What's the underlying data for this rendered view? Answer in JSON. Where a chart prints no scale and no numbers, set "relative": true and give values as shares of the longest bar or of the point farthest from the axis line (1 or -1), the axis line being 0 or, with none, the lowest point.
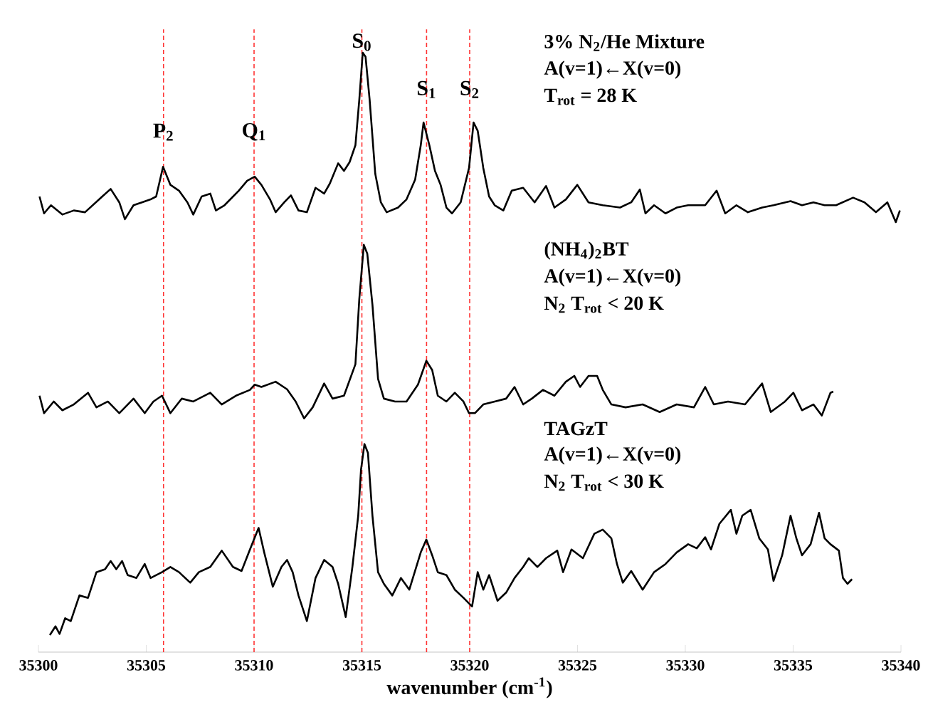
{
  "chart_data": {
    "type": "line",
    "relative": true,
    "xlabel": "wavenumber (cm$^{-1}$)",
    "xlim": [
      35300,
      35340
    ],
    "xticks": [
      35300,
      35305,
      35310,
      35315,
      35320,
      35325,
      35330,
      35335,
      35340
    ],
    "series": [
      {
        "color": "#000000",
        "x": [
          35300.05,
          35300.26,
          35300.58,
          35301.11,
          35301.64,
          35302.16,
          35302.96,
          35303.35,
          35303.75,
          35304.01,
          35304.41,
          35304.8,
          35305.2,
          35305.46,
          35305.78,
          35306.12,
          35306.52,
          35306.91,
          35307.18,
          35307.57,
          35307.97,
          35308.23,
          35308.63,
          35309.29,
          35309.68,
          35310.03,
          35310.34,
          35310.74,
          35311.0,
          35311.4,
          35311.71,
          35312.06,
          35312.45,
          35312.85,
          35313.25,
          35313.51,
          35313.9,
          35314.17,
          35314.43,
          35314.7,
          35314.88,
          35315.04,
          35315.17,
          35315.36,
          35315.62,
          35315.88,
          35316.15,
          35316.68,
          35317.07,
          35317.47,
          35317.73,
          35317.86,
          35318.13,
          35318.39,
          35318.65,
          35318.92,
          35319.18,
          35319.58,
          35319.97,
          35320.18,
          35320.37,
          35320.63,
          35320.9,
          35321.16,
          35321.56,
          35321.95,
          35322.48,
          35323.01,
          35323.54,
          35323.93,
          35324.46,
          35324.99,
          35325.51,
          35326.17,
          35326.97,
          35327.49,
          35327.89,
          35328.15,
          35328.55,
          35329.08,
          35329.6,
          35330.13,
          35330.92,
          35331.45,
          35331.85,
          35332.37,
          35332.9,
          35333.56,
          35334.09,
          35334.88,
          35335.41,
          35335.94,
          35336.46,
          35336.99,
          35337.78,
          35338.31,
          35338.84,
          35339.37,
          35339.76,
          35339.95
        ],
        "values": [
          0.753,
          0.724,
          0.738,
          0.722,
          0.729,
          0.726,
          0.753,
          0.766,
          0.743,
          0.714,
          0.738,
          0.743,
          0.748,
          0.753,
          0.804,
          0.773,
          0.763,
          0.743,
          0.722,
          0.753,
          0.758,
          0.729,
          0.738,
          0.763,
          0.78,
          0.787,
          0.773,
          0.748,
          0.726,
          0.743,
          0.755,
          0.729,
          0.726,
          0.768,
          0.758,
          0.775,
          0.81,
          0.797,
          0.812,
          0.841,
          0.919,
          1.0,
          0.993,
          0.919,
          0.792,
          0.743,
          0.726,
          0.734,
          0.748,
          0.782,
          0.841,
          0.88,
          0.841,
          0.797,
          0.773,
          0.734,
          0.724,
          0.743,
          0.802,
          0.88,
          0.866,
          0.802,
          0.753,
          0.738,
          0.729,
          0.763,
          0.768,
          0.743,
          0.771,
          0.734,
          0.748,
          0.773,
          0.743,
          0.738,
          0.734,
          0.743,
          0.765,
          0.724,
          0.738,
          0.724,
          0.734,
          0.738,
          0.738,
          0.763,
          0.724,
          0.738,
          0.726,
          0.734,
          0.738,
          0.745,
          0.738,
          0.743,
          0.738,
          0.738,
          0.751,
          0.743,
          0.726,
          0.743,
          0.709,
          0.729
        ]
      },
      {
        "color": "#000000",
        "x": [
          35300.05,
          35300.26,
          35300.71,
          35301.11,
          35301.64,
          35302.3,
          35302.69,
          35303.22,
          35303.75,
          35304.41,
          35304.93,
          35305.33,
          35305.73,
          35306.12,
          35306.65,
          35307.18,
          35307.97,
          35308.5,
          35309.16,
          35309.81,
          35310.03,
          35310.34,
          35311.0,
          35311.53,
          35311.93,
          35312.32,
          35312.72,
          35313.25,
          35313.64,
          35314.17,
          35314.7,
          35314.88,
          35315.09,
          35315.25,
          35315.49,
          35315.75,
          35316.02,
          35316.54,
          35317.07,
          35317.6,
          35317.99,
          35318.26,
          35318.52,
          35318.92,
          35319.31,
          35319.71,
          35319.97,
          35320.24,
          35320.63,
          35321.16,
          35321.69,
          35322.08,
          35322.48,
          35322.88,
          35323.4,
          35323.93,
          35324.46,
          35324.85,
          35325.12,
          35325.51,
          35325.91,
          35326.17,
          35326.57,
          35327.23,
          35328.02,
          35328.81,
          35329.6,
          35330.4,
          35330.92,
          35331.32,
          35331.98,
          35332.77,
          35333.56,
          35333.96,
          35334.62,
          35335.01,
          35335.41,
          35335.94,
          35336.33,
          35336.73,
          35336.86
        ],
        "values": [
          0.411,
          0.381,
          0.401,
          0.386,
          0.396,
          0.416,
          0.391,
          0.401,
          0.381,
          0.406,
          0.381,
          0.401,
          0.411,
          0.381,
          0.406,
          0.401,
          0.416,
          0.396,
          0.411,
          0.421,
          0.43,
          0.426,
          0.435,
          0.422,
          0.401,
          0.372,
          0.391,
          0.432,
          0.406,
          0.411,
          0.465,
          0.577,
          0.67,
          0.655,
          0.567,
          0.44,
          0.406,
          0.401,
          0.401,
          0.43,
          0.471,
          0.455,
          0.411,
          0.401,
          0.416,
          0.401,
          0.381,
          0.381,
          0.396,
          0.401,
          0.406,
          0.426,
          0.396,
          0.406,
          0.421,
          0.411,
          0.435,
          0.445,
          0.426,
          0.445,
          0.445,
          0.421,
          0.396,
          0.391,
          0.396,
          0.383,
          0.396,
          0.391,
          0.426,
          0.396,
          0.401,
          0.396,
          0.432,
          0.383,
          0.401,
          0.416,
          0.386,
          0.396,
          0.377,
          0.416,
          0.418
        ]
      },
      {
        "color": "#000000",
        "x": [
          35300.53,
          35300.79,
          35300.98,
          35301.24,
          35301.5,
          35301.9,
          35302.3,
          35302.69,
          35303.09,
          35303.35,
          35303.61,
          35303.88,
          35304.14,
          35304.54,
          35304.93,
          35305.2,
          35305.73,
          35306.12,
          35306.52,
          35307.04,
          35307.44,
          35307.97,
          35308.5,
          35309.02,
          35309.42,
          35309.81,
          35310.21,
          35310.47,
          35310.87,
          35311.27,
          35311.53,
          35311.79,
          35312.06,
          35312.45,
          35312.85,
          35313.25,
          35313.64,
          35313.9,
          35314.25,
          35314.56,
          35314.83,
          35314.96,
          35315.12,
          35315.28,
          35315.49,
          35315.75,
          35316.02,
          35316.41,
          35316.81,
          35317.2,
          35317.73,
          35317.99,
          35318.26,
          35318.52,
          35318.92,
          35319.31,
          35319.71,
          35320.11,
          35320.37,
          35320.63,
          35320.9,
          35321.29,
          35321.69,
          35322.08,
          35322.48,
          35322.74,
          35323.14,
          35323.54,
          35324.06,
          35324.33,
          35324.72,
          35325.25,
          35325.78,
          35326.17,
          35326.57,
          35326.83,
          35327.1,
          35327.49,
          35328.02,
          35328.55,
          35329.08,
          35329.6,
          35330.13,
          35330.53,
          35330.92,
          35331.19,
          35331.58,
          35332.11,
          35332.37,
          35332.64,
          35333.03,
          35333.43,
          35333.83,
          35334.09,
          35334.49,
          35334.88,
          35335.15,
          35335.41,
          35335.81,
          35336.2,
          35336.46,
          35336.73,
          35337.12,
          35337.31,
          35337.52,
          35337.73
        ],
        "values": [
          0.0,
          0.015,
          0.002,
          0.029,
          0.024,
          0.068,
          0.064,
          0.108,
          0.113,
          0.127,
          0.113,
          0.127,
          0.103,
          0.098,
          0.122,
          0.098,
          0.108,
          0.117,
          0.108,
          0.09,
          0.108,
          0.117,
          0.145,
          0.117,
          0.11,
          0.147,
          0.184,
          0.142,
          0.083,
          0.117,
          0.129,
          0.108,
          0.068,
          0.024,
          0.098,
          0.129,
          0.117,
          0.088,
          0.031,
          0.117,
          0.205,
          0.284,
          0.328,
          0.313,
          0.205,
          0.108,
          0.088,
          0.068,
          0.098,
          0.078,
          0.142,
          0.164,
          0.137,
          0.108,
          0.103,
          0.078,
          0.064,
          0.049,
          0.108,
          0.078,
          0.103,
          0.059,
          0.073,
          0.098,
          0.117,
          0.132,
          0.117,
          0.132,
          0.145,
          0.108,
          0.147,
          0.132,
          0.174,
          0.181,
          0.166,
          0.122,
          0.09,
          0.11,
          0.078,
          0.108,
          0.122,
          0.142,
          0.156,
          0.149,
          0.168,
          0.147,
          0.191,
          0.215,
          0.174,
          0.205,
          0.215,
          0.166,
          0.147,
          0.093,
          0.137,
          0.205,
          0.166,
          0.137,
          0.156,
          0.21,
          0.166,
          0.156,
          0.145,
          0.098,
          0.088,
          0.096
        ]
      }
    ],
    "ref_lines": [
      {
        "axis": "x",
        "value": 35305.8,
        "color": "#ff3333",
        "line_style": "dashed"
      },
      {
        "axis": "x",
        "value": 35310,
        "color": "#ff3333",
        "line_style": "dashed"
      },
      {
        "axis": "x",
        "value": 35315,
        "color": "#ff3333",
        "line_style": "dashed"
      },
      {
        "axis": "x",
        "value": 35318,
        "color": "#ff3333",
        "line_style": "dashed"
      },
      {
        "axis": "x",
        "value": 35320,
        "color": "#ff3333",
        "line_style": "dashed"
      }
    ],
    "annotations": [
      {
        "text": "P$_{2}$",
        "x": 35305.8,
        "y": 0.846
      },
      {
        "text": "Q$_{1}$",
        "x": 35310,
        "y": 0.846
      },
      {
        "text": "S$_{0}$",
        "x": 35315,
        "y": 1.0
      },
      {
        "text": "S$_{1}$",
        "x": 35318,
        "y": 0.919
      },
      {
        "text": "S$_{2}$",
        "x": 35320,
        "y": 0.919
      },
      "3% N$_{2}$/He Mixture",
      "A(v=1)←X(v=0)",
      "T$_{rot}$ = 28 K",
      "(NH$_{4}$)$_{2}$BT",
      "A(v=1)←X(v=0)",
      "N$_{2}$ T$_{rot}$ < 20 K",
      "TAGzT",
      "A(v=1)←X(v=0)",
      "N$_{2}$ T$_{rot}$ < 30 K"
    ]
  }
}
